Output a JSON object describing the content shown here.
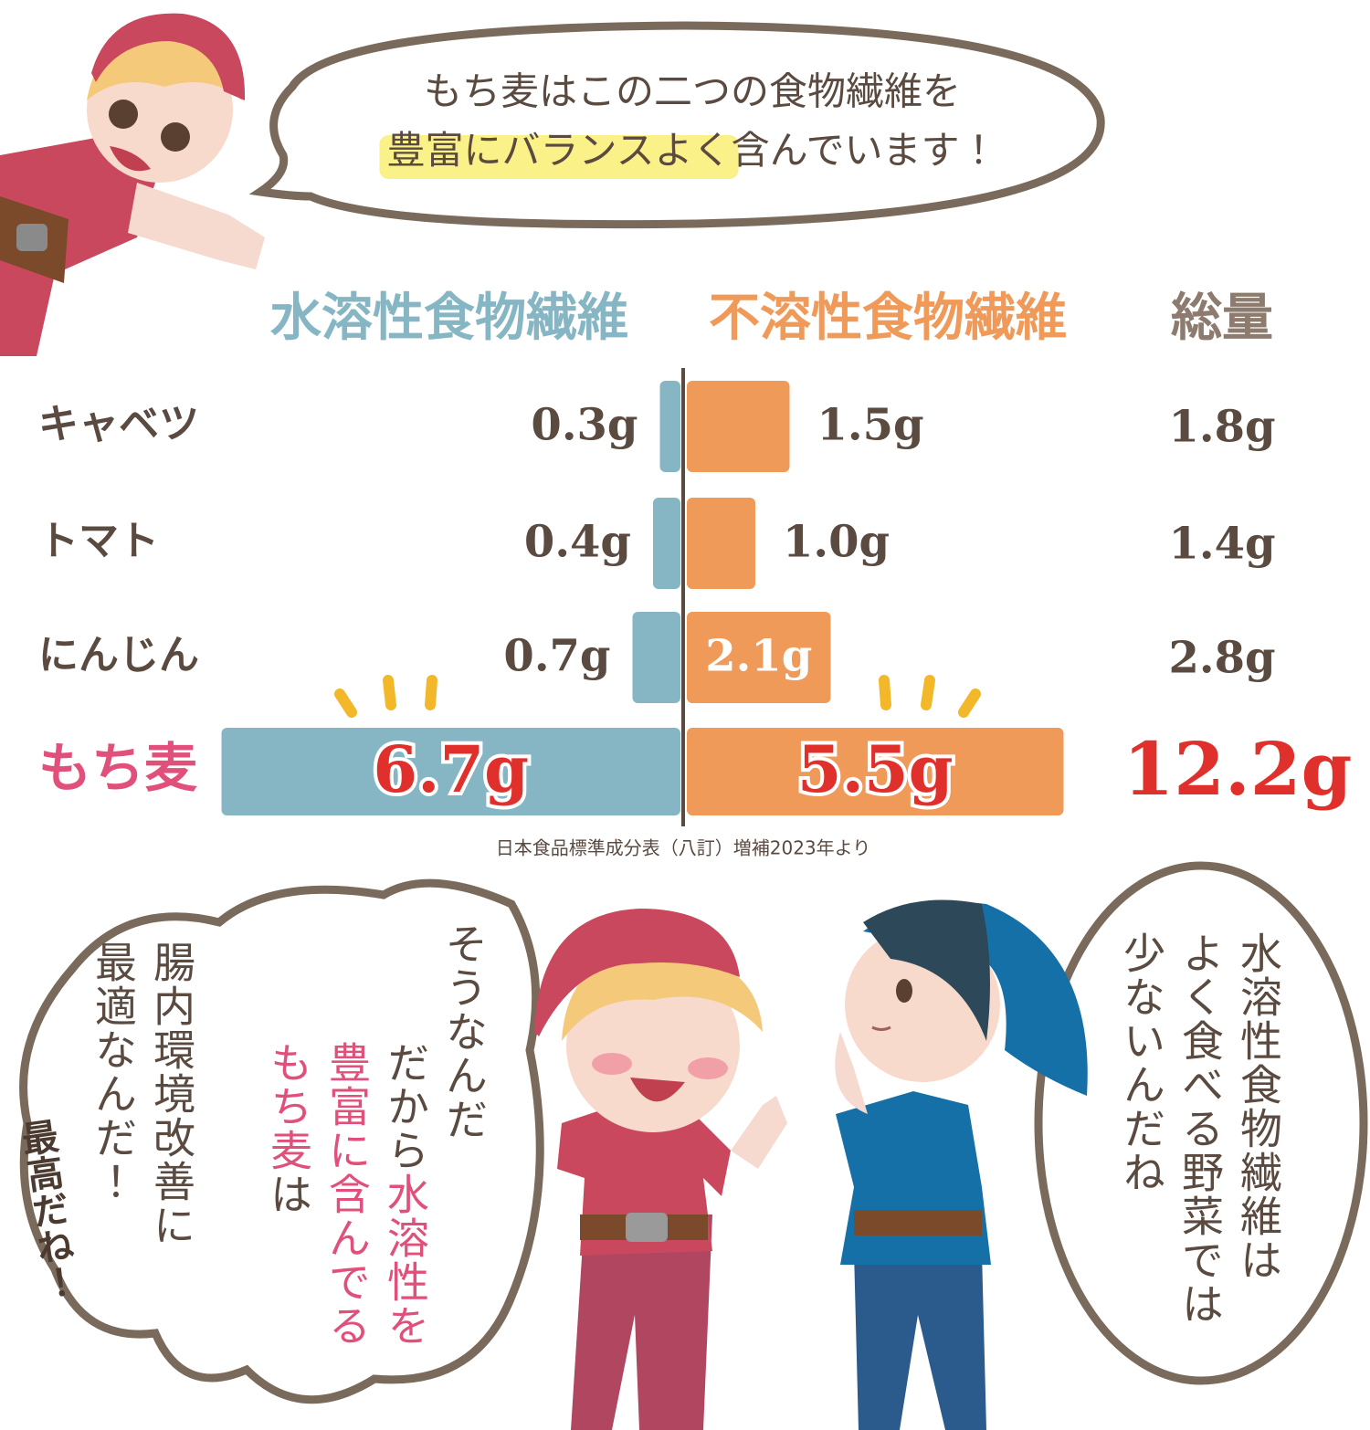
{
  "top_bubble": {
    "line1": "もち麦はこの二つの食物繊維を",
    "line2_highlight": "豊富にバランスよく",
    "line2_rest": "含んでいます！"
  },
  "chart_data": {
    "type": "butterfly",
    "categories": [
      "キャベツ",
      "トマト",
      "にんじん",
      "もち麦"
    ],
    "series": [
      {
        "name": "水溶性食物繊維",
        "color": "#86b6c4",
        "values": [
          0.3,
          0.4,
          0.7,
          6.7
        ],
        "value_labels": [
          "0.3g",
          "0.4g",
          "0.7g",
          "6.7g"
        ]
      },
      {
        "name": "不溶性食物繊維",
        "color": "#f09a5a",
        "values": [
          1.5,
          1.0,
          2.1,
          5.5
        ],
        "value_labels": [
          "1.5g",
          "1.0g",
          "2.1g",
          "5.5g"
        ]
      }
    ],
    "totals": {
      "name": "総量",
      "values": [
        1.8,
        1.4,
        2.8,
        12.2
      ],
      "value_labels": [
        "1.8g",
        "1.4g",
        "2.8g",
        "12.2g"
      ]
    },
    "source": "日本食品標準成分表（八訂）増補2023年より"
  },
  "dialogue": {
    "left": {
      "lines": [
        "腸内環境改善に",
        "最適なんだ！"
      ],
      "exclaim": "最高だね！"
    },
    "middle": {
      "line1": "そうなんだ",
      "line2": [
        "だから",
        "水溶性を"
      ],
      "line3": "豊富に含んでる",
      "line4": [
        "もち麦",
        "は"
      ]
    },
    "right": {
      "lines": [
        "水溶性食物繊維は",
        "よく食べる野菜では",
        "少ないんだね"
      ]
    }
  }
}
